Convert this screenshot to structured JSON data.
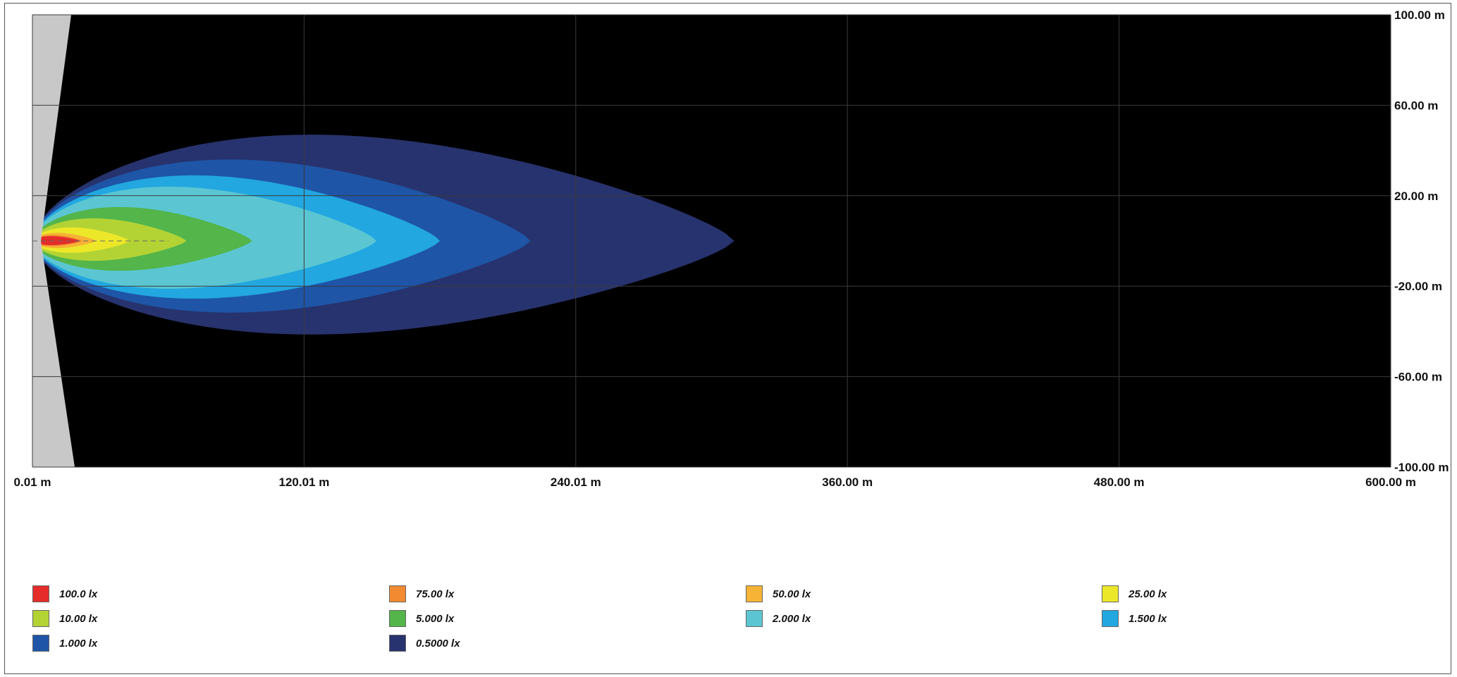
{
  "chart_data": {
    "type": "heatmap",
    "title": "",
    "x_tick_labels": [
      "0.01 m",
      "120.01 m",
      "240.01 m",
      "360.00 m",
      "480.00 m",
      "600.00 m"
    ],
    "x_tick_values": [
      0.01,
      120.01,
      240.01,
      360.0,
      480.0,
      600.0
    ],
    "y_tick_labels": [
      "100.00 m",
      "60.00 m",
      "20.00 m",
      "-20.00 m",
      "-60.00 m",
      "-100.00 m"
    ],
    "y_tick_values": [
      100,
      60,
      20,
      -20,
      -60,
      -100
    ],
    "xlim": [
      0.01,
      600.0
    ],
    "ylim": [
      -100,
      100
    ],
    "background_color": "#000000",
    "grid": true,
    "centerline_dashed": true,
    "series": [
      {
        "name": "0.5000 lx",
        "color": "#27336e",
        "x_reach": 310,
        "half_width_max": 47
      },
      {
        "name": "1.000 lx",
        "color": "#1e55a6",
        "x_reach": 220,
        "half_width_max": 36
      },
      {
        "name": "1.500 lx",
        "color": "#22a7e0",
        "x_reach": 180,
        "half_width_max": 29
      },
      {
        "name": "2.000 lx",
        "color": "#5bc6d2",
        "x_reach": 152,
        "half_width_max": 24
      },
      {
        "name": "5.000 lx",
        "color": "#53b54a",
        "x_reach": 97,
        "half_width_max": 15
      },
      {
        "name": "10.00 lx",
        "color": "#b3d334",
        "x_reach": 68,
        "half_width_max": 10
      },
      {
        "name": "25.00 lx",
        "color": "#ece829",
        "x_reach": 43,
        "half_width_max": 6
      },
      {
        "name": "50.00 lx",
        "color": "#f6b335",
        "x_reach": 28,
        "half_width_max": 3.6
      },
      {
        "name": "75.00 lx",
        "color": "#f18a30",
        "x_reach": 22,
        "half_width_max": 2.6
      },
      {
        "name": "100.0 lx",
        "color": "#e42d2a",
        "x_reach": 21,
        "half_width_max": 2.1
      }
    ],
    "legend": {
      "placement": "bottom",
      "entries": [
        {
          "label": "100.0 lx",
          "color": "#e42d2a"
        },
        {
          "label": "75.00 lx",
          "color": "#f18a30"
        },
        {
          "label": "50.00 lx",
          "color": "#f6b335"
        },
        {
          "label": "25.00 lx",
          "color": "#ece829"
        },
        {
          "label": "10.00 lx",
          "color": "#b3d334"
        },
        {
          "label": "5.000 lx",
          "color": "#53b54a"
        },
        {
          "label": "2.000 lx",
          "color": "#5bc6d2"
        },
        {
          "label": "1.500 lx",
          "color": "#22a7e0"
        },
        {
          "label": "1.000 lx",
          "color": "#1e55a6"
        },
        {
          "label": "0.5000 lx",
          "color": "#27336e"
        }
      ]
    }
  }
}
